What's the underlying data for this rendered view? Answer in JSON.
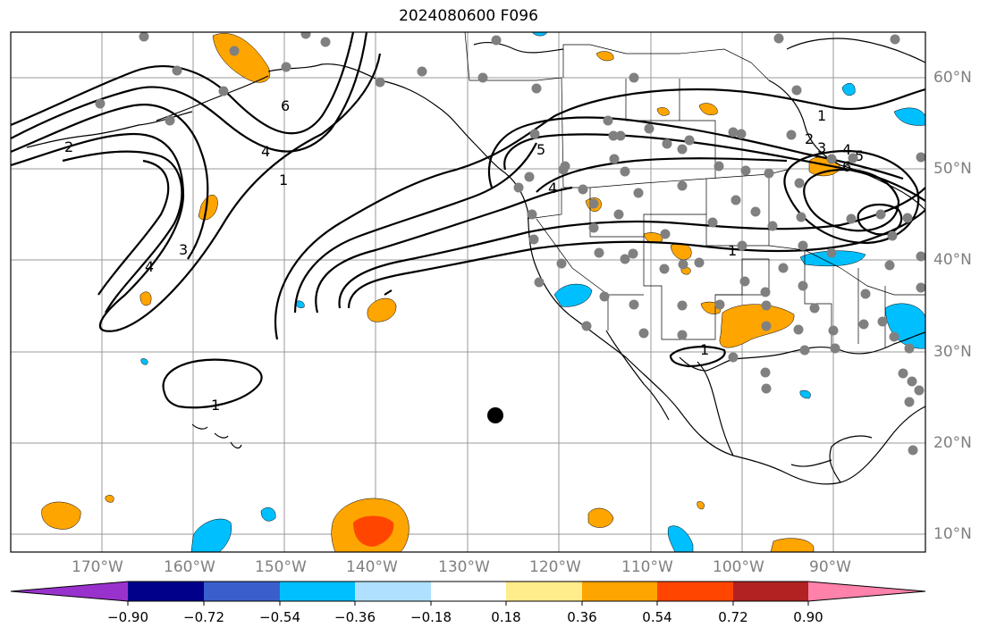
{
  "title": "2024080600 F096",
  "lon_labels": [
    "170°W",
    "160°W",
    "150°W",
    "140°W",
    "130°W",
    "120°W",
    "110°W",
    "100°W",
    "90°W"
  ],
  "lat_labels": [
    "60°N",
    "50°N",
    "40°N",
    "30°N",
    "20°N",
    "10°N"
  ],
  "contour_labels": [
    "1",
    "2",
    "3",
    "4",
    "5",
    "6"
  ],
  "colorbar": {
    "ticks": [
      "−0.90",
      "−0.72",
      "−0.54",
      "−0.36",
      "−0.18",
      "0.18",
      "0.36",
      "0.54",
      "0.72",
      "0.90"
    ],
    "colors": [
      "#9932cc",
      "#00008b",
      "#3a5fcd",
      "#00bfff",
      "#b0e0ff",
      "#ffffff",
      "#ffec8b",
      "#ffa500",
      "#ff4500",
      "#b22222",
      "#ff82ab"
    ]
  },
  "colors": {
    "grid": "#999999",
    "station": "#808080",
    "axis_label": "#7f7f7f"
  }
}
